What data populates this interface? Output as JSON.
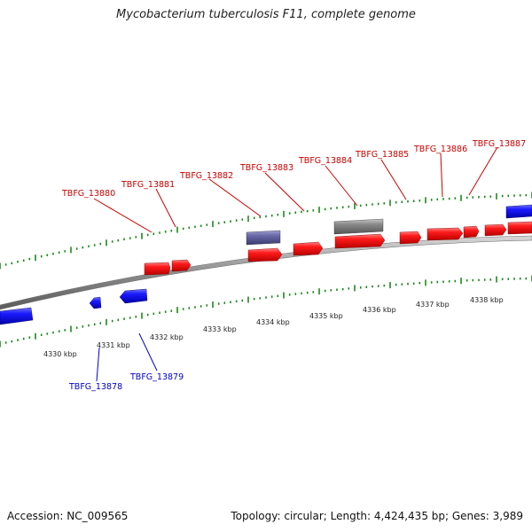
{
  "title": "Mycobacterium tuberculosis F11, complete genome",
  "footer": {
    "accession": "Accession: NC_009565",
    "summary": "Topology: circular; Length: 4,424,435 bp; Genes: 3,989"
  },
  "colors": {
    "forward_gene": "#ff0000",
    "reverse_gene": "#0000ff",
    "forward_label": "#cc0000",
    "reverse_label": "#0000cc",
    "other_feature": "#888888",
    "other_feature_alt": "#6a6a9e",
    "ruler_ticks": "#1a8a1a",
    "backbone": "#999999"
  },
  "ruler": {
    "labels": [
      "4330 kbp",
      "4331 kbp",
      "4332 kbp",
      "4333 kbp",
      "4334 kbp",
      "4335 kbp",
      "4336 kbp",
      "4337 kbp",
      "4338 kbp"
    ]
  },
  "gene_labels": {
    "forward": [
      "TBFG_13880",
      "TBFG_13881",
      "TBFG_13882",
      "TBFG_13883",
      "TBFG_13884",
      "TBFG_13885",
      "TBFG_13886",
      "TBFG_13887"
    ],
    "reverse": [
      "TBFG_13878",
      "TBFG_13879"
    ]
  }
}
